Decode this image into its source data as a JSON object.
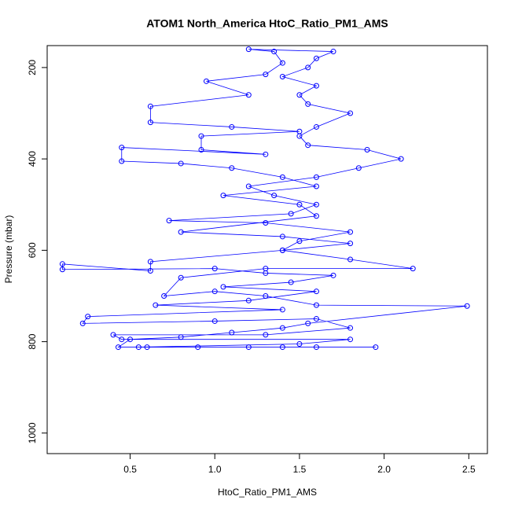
{
  "chart_data": {
    "type": "scatter",
    "title": "ATOM1 North_America HtoC_Ratio_PM1_AMS",
    "xlabel": "HtoC_Ratio_PM1_AMS",
    "ylabel": "Pressure (mbar)",
    "color": "#0000ff",
    "xlim": [
      0.01,
      2.61
    ],
    "ylim": [
      1045,
      152
    ],
    "y_inverted": true,
    "xticks": [
      0.5,
      {
        "value": 1,
        "label": "1.0"
      },
      1.5,
      {
        "value": 2,
        "label": "2.0"
      },
      2.5
    ],
    "yticks": [
      200,
      400,
      600,
      800,
      1000
    ],
    "x": [
      1.95,
      1.6,
      1.2,
      0.9,
      0.6,
      0.43,
      0.5,
      0.8,
      1.1,
      1.4,
      1.55,
      2.49,
      1.6,
      1.3,
      1.0,
      0.7,
      0.8,
      1.3,
      2.17,
      1.8,
      1.4,
      1.5,
      1.8,
      1.3,
      0.73,
      1.45,
      1.6,
      1.35,
      1.2,
      1.6,
      1.85,
      2.1,
      1.9,
      1.55,
      1.5,
      1.6,
      1.8,
      1.55,
      1.5,
      1.6,
      1.4,
      1.55,
      1.6,
      1.7,
      1.2,
      1.35,
      1.4,
      1.3,
      0.95,
      1.2,
      0.62,
      0.62,
      1.1,
      1.5,
      0.92,
      0.92,
      1.3,
      0.45,
      0.45,
      0.8,
      1.1,
      1.4,
      1.6,
      1.05,
      1.5,
      1.6,
      0.8,
      1.4,
      1.8,
      1.4,
      0.62,
      0.62,
      0.1,
      0.1,
      1.0,
      1.3,
      1.7,
      1.45,
      1.05,
      1.6,
      1.2,
      0.65,
      1.4,
      0.25,
      0.22,
      1.0,
      1.6,
      1.8,
      1.3,
      0.4,
      0.45,
      1.8,
      1.5,
      0.55,
      1.4
    ],
    "y": [
      812,
      812,
      812,
      812,
      812,
      812,
      795,
      790,
      780,
      770,
      760,
      722,
      720,
      700,
      690,
      700,
      660,
      640,
      640,
      620,
      600,
      580,
      560,
      540,
      535,
      520,
      500,
      480,
      460,
      440,
      420,
      400,
      380,
      370,
      350,
      330,
      300,
      280,
      260,
      240,
      220,
      200,
      180,
      165,
      160,
      165,
      190,
      215,
      230,
      260,
      285,
      320,
      330,
      340,
      350,
      380,
      390,
      375,
      405,
      410,
      420,
      440,
      460,
      480,
      500,
      525,
      560,
      570,
      585,
      600,
      625,
      645,
      630,
      642,
      640,
      650,
      655,
      670,
      680,
      690,
      710,
      720,
      730,
      745,
      760,
      755,
      750,
      770,
      785,
      785,
      795,
      795,
      805,
      812,
      812
    ]
  }
}
